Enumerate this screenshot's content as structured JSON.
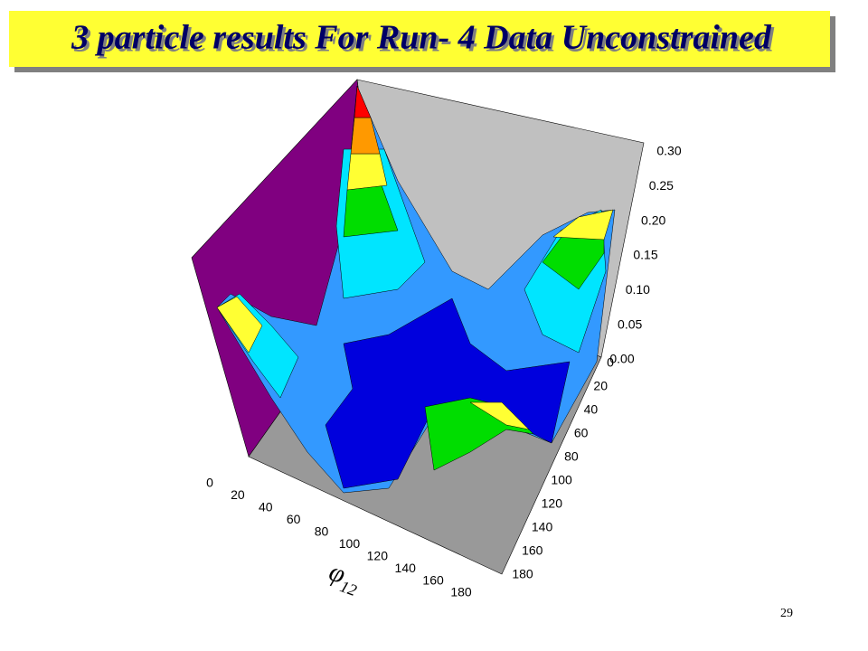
{
  "header": {
    "title": "3 particle results For Run- 4 Data Unconstrained"
  },
  "figure": {
    "z_ticks": [
      "0.00",
      "0.05",
      "0.10",
      "0.15",
      "0.20",
      "0.25",
      "0.30"
    ],
    "x_ticks": [
      "0",
      "20",
      "40",
      "60",
      "80",
      "100",
      "120",
      "140",
      "160",
      "180"
    ],
    "y_ticks": [
      "0",
      "20",
      "40",
      "60",
      "80",
      "100",
      "120",
      "140",
      "160",
      "180"
    ],
    "x_label": {
      "symbol": "φ",
      "subscript": "12"
    }
  },
  "footer": {
    "page_number": "29"
  }
}
